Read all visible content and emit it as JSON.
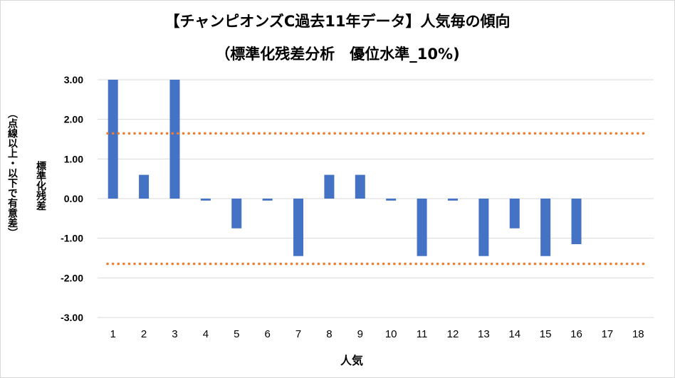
{
  "chart_data": {
    "type": "bar",
    "title": "【チャンピオンズC過去11年データ】人気毎の傾向",
    "subtitle": "（標準化残差分析　優位水準_10%)",
    "xlabel": "人気",
    "ylabel": "標準化残差",
    "ylabel_note": "（点線以上・以下で有意差）",
    "categories": [
      "1",
      "2",
      "3",
      "4",
      "5",
      "6",
      "7",
      "8",
      "9",
      "10",
      "11",
      "12",
      "13",
      "14",
      "15",
      "16",
      "17",
      "18"
    ],
    "values": [
      3.0,
      0.6,
      3.0,
      -0.05,
      -0.75,
      -0.05,
      -1.45,
      0.6,
      0.6,
      -0.05,
      -1.45,
      -0.05,
      -1.45,
      -0.75,
      -1.45,
      -1.15,
      0.0,
      0.0
    ],
    "ylim": [
      -3.0,
      3.0
    ],
    "yticks": [
      "3.00",
      "2.00",
      "1.00",
      "0.00",
      "-1.00",
      "-2.00",
      "-3.00"
    ],
    "threshold_lines": [
      1.645,
      -1.645
    ],
    "bar_color": "#4472c4",
    "threshold_color": "#ed7d31",
    "grid_color": "#d9d9d9",
    "grid": true,
    "legend": false
  }
}
